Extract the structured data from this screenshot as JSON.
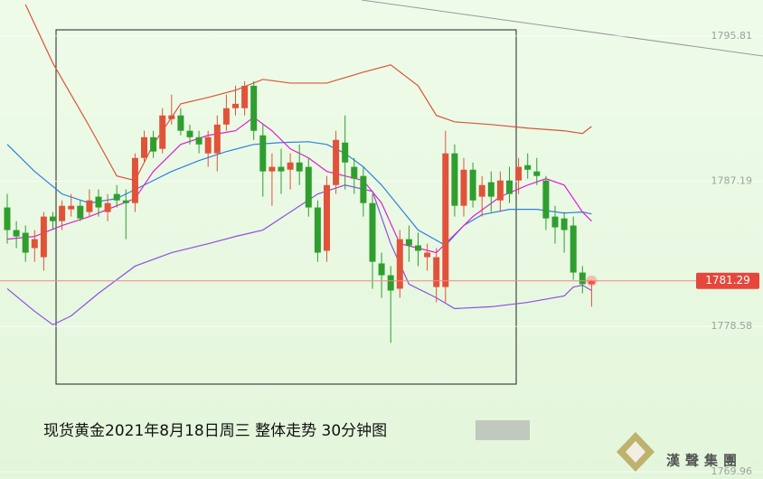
{
  "chart_data": {
    "type": "candlestick",
    "ylim": [
      1769.53,
      1797.95
    ],
    "yticks": [
      1769.96,
      1778.58,
      1787.19,
      1795.81
    ],
    "up_color": "#e0533a",
    "down_color": "#2f9e2f",
    "open": [
      1785.64,
      1784.3,
      1784.14,
      1783.23,
      1782.69,
      1785.1,
      1784.83,
      1785.53,
      1785.74,
      1785.37,
      1786.28,
      1785.37,
      1786.44,
      1786.06,
      1785.9,
      1788.58,
      1789.81,
      1789.12,
      1790.88,
      1791.1,
      1790.19,
      1789.81,
      1788.85,
      1788.85,
      1790.56,
      1791.53,
      1791.53,
      1792.86,
      1789.92,
      1787.78,
      1788.05,
      1787.88,
      1788.31,
      1788.05,
      1785.64,
      1783.07,
      1786.97,
      1789.49,
      1788.05,
      1787.51,
      1785.9,
      1782.32,
      1781.62,
      1780.82,
      1783.76,
      1783.39,
      1782.69,
      1780.92,
      1780.92,
      1788.85,
      1785.74,
      1787.88,
      1786.28,
      1787.14,
      1786.06,
      1787.24,
      1787.24,
      1788.15,
      1787.78,
      1787.24,
      1785.1,
      1784.99,
      1784.57,
      1781.78,
      1781.09
    ],
    "high": [
      1786.44,
      1784.83,
      1784.57,
      1784.3,
      1785.37,
      1785.37,
      1786.06,
      1786.44,
      1786.06,
      1786.71,
      1786.71,
      1786.44,
      1786.97,
      1786.71,
      1788.85,
      1790.19,
      1790.19,
      1791.53,
      1792.33,
      1791.53,
      1790.56,
      1790.19,
      1790.19,
      1791.1,
      1792.33,
      1792.86,
      1793.13,
      1793.13,
      1790.56,
      1788.85,
      1789.12,
      1788.85,
      1789.38,
      1788.58,
      1786.06,
      1787.51,
      1790.19,
      1791.1,
      1788.58,
      1788.05,
      1786.44,
      1782.96,
      1782.16,
      1784.3,
      1784.57,
      1784.14,
      1783.49,
      1783.23,
      1790.19,
      1789.38,
      1788.58,
      1788.31,
      1787.51,
      1787.78,
      1787.78,
      1788.05,
      1788.58,
      1788.85,
      1788.58,
      1787.51,
      1785.74,
      1785.37,
      1785.1,
      1782.16,
      1781.35
    ],
    "low": [
      1783.49,
      1783.23,
      1782.42,
      1782.42,
      1781.89,
      1784.3,
      1784.3,
      1785.1,
      1784.83,
      1785.1,
      1785.1,
      1784.83,
      1785.64,
      1783.76,
      1785.37,
      1788.31,
      1788.58,
      1788.85,
      1790.56,
      1789.92,
      1789.38,
      1788.85,
      1788.05,
      1787.78,
      1790.19,
      1791.1,
      1791.1,
      1789.65,
      1786.28,
      1785.74,
      1786.44,
      1786.71,
      1786.97,
      1785.1,
      1782.42,
      1782.42,
      1786.44,
      1786.71,
      1786.44,
      1785.1,
      1780.82,
      1780.28,
      1777.61,
      1780.28,
      1782.42,
      1782.16,
      1781.89,
      1780.01,
      1780.01,
      1785.1,
      1785.1,
      1785.64,
      1785.1,
      1785.37,
      1785.37,
      1785.9,
      1786.44,
      1787.35,
      1786.97,
      1784.3,
      1783.49,
      1782.96,
      1781.35,
      1780.55,
      1779.75
    ],
    "close": [
      1784.3,
      1783.92,
      1782.96,
      1783.76,
      1785.1,
      1784.83,
      1785.74,
      1785.74,
      1784.99,
      1786.06,
      1785.64,
      1785.9,
      1786.06,
      1785.9,
      1788.58,
      1789.81,
      1788.96,
      1791.1,
      1791.1,
      1790.19,
      1789.81,
      1789.38,
      1789.81,
      1790.56,
      1791.53,
      1791.79,
      1792.86,
      1790.19,
      1787.78,
      1788.05,
      1787.78,
      1788.31,
      1787.78,
      1785.64,
      1782.96,
      1786.97,
      1789.65,
      1788.31,
      1787.35,
      1785.9,
      1782.42,
      1781.62,
      1780.71,
      1783.76,
      1783.39,
      1783.07,
      1782.96,
      1782.69,
      1788.85,
      1785.74,
      1787.88,
      1786.06,
      1786.97,
      1786.28,
      1787.24,
      1786.44,
      1788.05,
      1787.88,
      1787.51,
      1784.99,
      1784.46,
      1784.3,
      1781.78,
      1781.09,
      1781.29
    ],
    "lines": [
      {
        "color": "#d9553a",
        "x": [
          2,
          5,
          9,
          12,
          14,
          16,
          19,
          22,
          25,
          28,
          31,
          35,
          39,
          42,
          45,
          47,
          49,
          53,
          57,
          61,
          63,
          64
        ],
        "values": [
          1797.68,
          1794.2,
          1790.45,
          1787.51,
          1787.24,
          1789.38,
          1791.79,
          1792.17,
          1792.6,
          1793.24,
          1793.02,
          1793.02,
          1793.67,
          1794.1,
          1792.86,
          1791.1,
          1790.72,
          1790.56,
          1790.35,
          1790.19,
          1790.03,
          1790.45
        ]
      },
      {
        "color": "#8e4fe0",
        "x": [
          0,
          3,
          5,
          7,
          10,
          14,
          18,
          22,
          25,
          28,
          31,
          34,
          37,
          40,
          42,
          44,
          47,
          49,
          53,
          57,
          61,
          62,
          63,
          64
        ],
        "values": [
          1780.82,
          1779.48,
          1778.68,
          1779.21,
          1780.55,
          1782.16,
          1782.96,
          1783.49,
          1783.92,
          1784.3,
          1785.37,
          1786.44,
          1786.97,
          1786.6,
          1783.49,
          1781.09,
          1780.28,
          1779.64,
          1779.75,
          1780.01,
          1780.39,
          1780.92,
          1781.03,
          1780.71
        ]
      },
      {
        "color": "#2f7fe0",
        "x": [
          0,
          3,
          6,
          9,
          12,
          15,
          18,
          21,
          24,
          27,
          30,
          33,
          35,
          37,
          39,
          41,
          43,
          45,
          48,
          50,
          52,
          55,
          58,
          61,
          63,
          64
        ],
        "values": [
          1789.38,
          1787.78,
          1786.44,
          1785.9,
          1786.17,
          1786.97,
          1787.78,
          1788.42,
          1788.96,
          1789.38,
          1789.49,
          1789.54,
          1789.38,
          1788.85,
          1788.05,
          1786.97,
          1785.64,
          1784.3,
          1783.39,
          1784.57,
          1785.21,
          1785.53,
          1785.53,
          1785.31,
          1785.37,
          1785.26
        ]
      },
      {
        "color": "#e020d0",
        "x": [
          0,
          3,
          6,
          9,
          12,
          14,
          16,
          19,
          22,
          25,
          27,
          29,
          31,
          33,
          35,
          37,
          39,
          41,
          43,
          45,
          47,
          49,
          51,
          54,
          57,
          59,
          61,
          63,
          64
        ],
        "values": [
          1783.76,
          1783.92,
          1784.57,
          1785.1,
          1785.74,
          1786.17,
          1787.78,
          1789.38,
          1789.92,
          1790.19,
          1790.99,
          1790.19,
          1789.12,
          1788.58,
          1787.78,
          1787.51,
          1787.24,
          1785.9,
          1783.49,
          1783.23,
          1782.96,
          1784.03,
          1785.1,
          1786.28,
          1786.97,
          1787.35,
          1786.97,
          1785.37,
          1784.83
        ]
      }
    ],
    "last_price": 1781.29,
    "caption": "现货黄金2021年8月18日周三 整体走势  30分钟图",
    "logo": "漢聲集團"
  }
}
